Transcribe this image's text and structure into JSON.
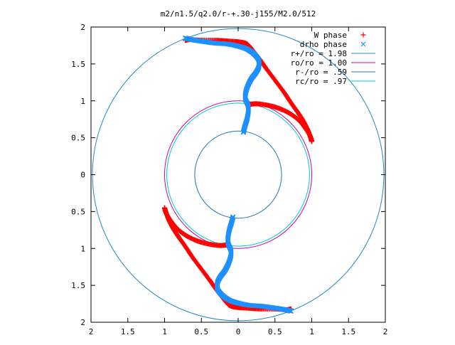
{
  "chart_data": {
    "type": "scatter",
    "title": "m2/n1.5/q2.0/r-+.30-j155/M2.0/512",
    "xlim": [
      -2,
      2
    ],
    "ylim": [
      -2,
      2
    ],
    "x_ticks": [
      -2,
      -1.5,
      -1,
      -0.5,
      0,
      0.5,
      1,
      1.5,
      2
    ],
    "y_ticks": [
      -2,
      -1.5,
      -1,
      -0.5,
      0,
      0.5,
      1,
      1.5,
      2
    ],
    "x_tick_labels": [
      "2",
      "1.5",
      "1",
      "0.5",
      "0",
      "0.5",
      "1",
      "1.5",
      "2"
    ],
    "y_tick_labels": [
      "2",
      "1.5",
      "1",
      "0.5",
      "0",
      "0.5",
      "1",
      "1.5",
      "2"
    ],
    "grid": false,
    "legend_position": "top-right",
    "colors": {
      "w_phase": "#ff0000",
      "drho_phase": "#1e90ff",
      "r_plus": "#1e88c8",
      "r_o": "#c000c0",
      "r_minus": "#1e78c0",
      "r_c": "#00c8c8",
      "frame": "#000000"
    },
    "circles": [
      {
        "name": "r+/ro = 1.98",
        "radius": 1.98,
        "color_key": "r_plus"
      },
      {
        "name": "ro/ro = 1.00",
        "radius": 1.0,
        "color_key": "r_o"
      },
      {
        "name": "r-/ro = .59",
        "radius": 0.59,
        "color_key": "r_minus"
      },
      {
        "name": "rc/ro = .97",
        "radius": 0.97,
        "color_key": "r_c"
      }
    ],
    "series": [
      {
        "name": "W phase",
        "marker": "+",
        "color_key": "w_phase",
        "arm_points": [
          [
            0.15,
            0.95
          ],
          [
            0.25,
            0.96
          ],
          [
            0.4,
            0.94
          ],
          [
            0.55,
            0.9
          ],
          [
            0.7,
            0.83
          ],
          [
            0.82,
            0.74
          ],
          [
            0.92,
            0.62
          ],
          [
            0.98,
            0.52
          ],
          [
            1.0,
            0.45
          ],
          [
            0.96,
            0.57
          ],
          [
            0.9,
            0.7
          ],
          [
            0.82,
            0.83
          ],
          [
            0.72,
            0.97
          ],
          [
            0.62,
            1.12
          ],
          [
            0.5,
            1.28
          ],
          [
            0.38,
            1.44
          ],
          [
            0.28,
            1.58
          ],
          [
            0.2,
            1.68
          ],
          [
            0.15,
            1.74
          ],
          [
            0.1,
            1.78
          ],
          [
            0.0,
            1.8
          ],
          [
            -0.15,
            1.81
          ],
          [
            -0.3,
            1.82
          ],
          [
            -0.5,
            1.82
          ],
          [
            -0.65,
            1.83
          ],
          [
            -0.72,
            1.82
          ]
        ]
      },
      {
        "name": "drho phase",
        "marker": "x",
        "color_key": "drho_phase",
        "arm_points": [
          [
            0.07,
            0.57
          ],
          [
            0.09,
            0.65
          ],
          [
            0.12,
            0.75
          ],
          [
            0.14,
            0.87
          ],
          [
            0.13,
            0.95
          ],
          [
            0.1,
            1.02
          ],
          [
            0.1,
            1.1
          ],
          [
            0.13,
            1.2
          ],
          [
            0.18,
            1.3
          ],
          [
            0.24,
            1.38
          ],
          [
            0.28,
            1.46
          ],
          [
            0.28,
            1.55
          ],
          [
            0.22,
            1.63
          ],
          [
            0.12,
            1.7
          ],
          [
            0.0,
            1.74
          ],
          [
            -0.15,
            1.77
          ],
          [
            -0.3,
            1.78
          ],
          [
            -0.45,
            1.8
          ],
          [
            -0.58,
            1.82
          ],
          [
            -0.68,
            1.84
          ],
          [
            -0.72,
            1.85
          ]
        ]
      }
    ]
  }
}
